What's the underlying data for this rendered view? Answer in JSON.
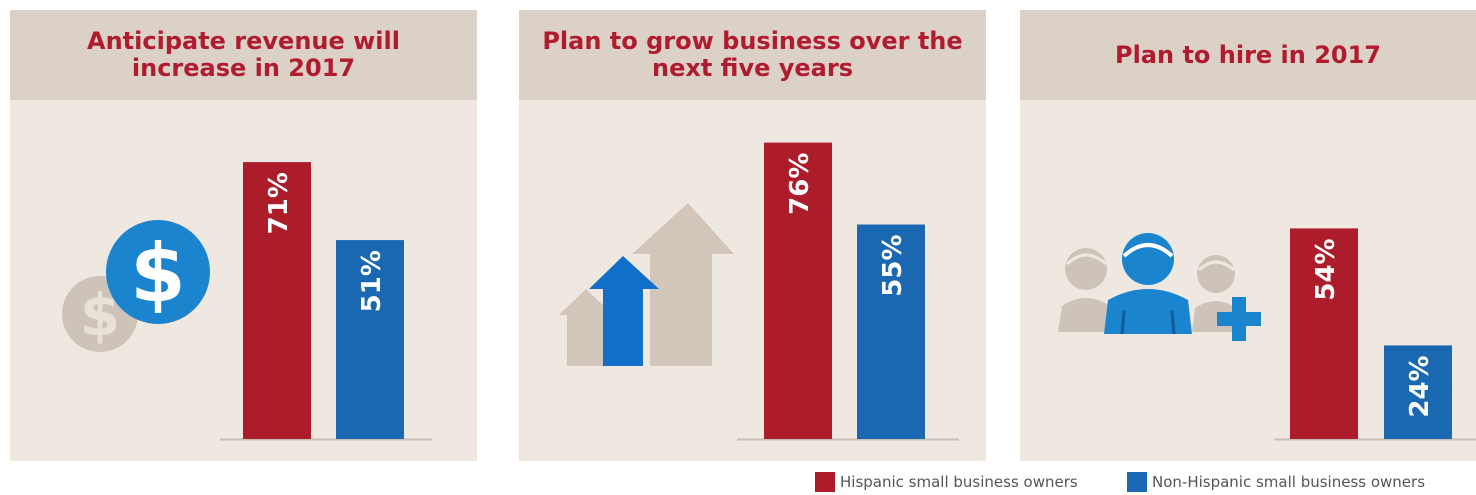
{
  "colors": {
    "hispanic": "#ad1c2b",
    "non_hispanic": "#1a67b2",
    "icon_blue": "#1a84cf",
    "icon_gray": "#cdc3b9",
    "arrow_blue": "#0f6fc9",
    "panel_bg": "#efe8e0",
    "header_bg": "#dbd1c7",
    "title_red": "#b01c2e"
  },
  "panels": [
    {
      "title": "Anticipate revenue will increase in 2017",
      "icon": "dollar-coins-icon"
    },
    {
      "title": "Plan to grow business over the next five years",
      "icon": "growth-arrows-icon"
    },
    {
      "title": "Plan to hire in 2017",
      "icon": "hire-people-icon"
    }
  ],
  "chart_data": [
    {
      "type": "bar",
      "title": "Anticipate revenue will increase in 2017",
      "categories": [
        "Hispanic small business owners",
        "Non-Hispanic small business owners"
      ],
      "values": [
        71,
        51
      ],
      "labels": [
        "71%",
        "51%"
      ],
      "ylim": [
        0,
        100
      ]
    },
    {
      "type": "bar",
      "title": "Plan to grow business over the next five years",
      "categories": [
        "Hispanic small business owners",
        "Non-Hispanic small business owners"
      ],
      "values": [
        76,
        55
      ],
      "labels": [
        "76%",
        "55%"
      ],
      "ylim": [
        0,
        100
      ]
    },
    {
      "type": "bar",
      "title": "Plan to hire in 2017",
      "categories": [
        "Hispanic small business owners",
        "Non-Hispanic small business owners"
      ],
      "values": [
        54,
        24
      ],
      "labels": [
        "54%",
        "24%"
      ],
      "ylim": [
        0,
        100
      ]
    }
  ],
  "legend": [
    {
      "label": "Hispanic small business owners",
      "color": "#ad1c2b"
    },
    {
      "label": "Non-Hispanic small business owners",
      "color": "#1a67b2"
    }
  ]
}
